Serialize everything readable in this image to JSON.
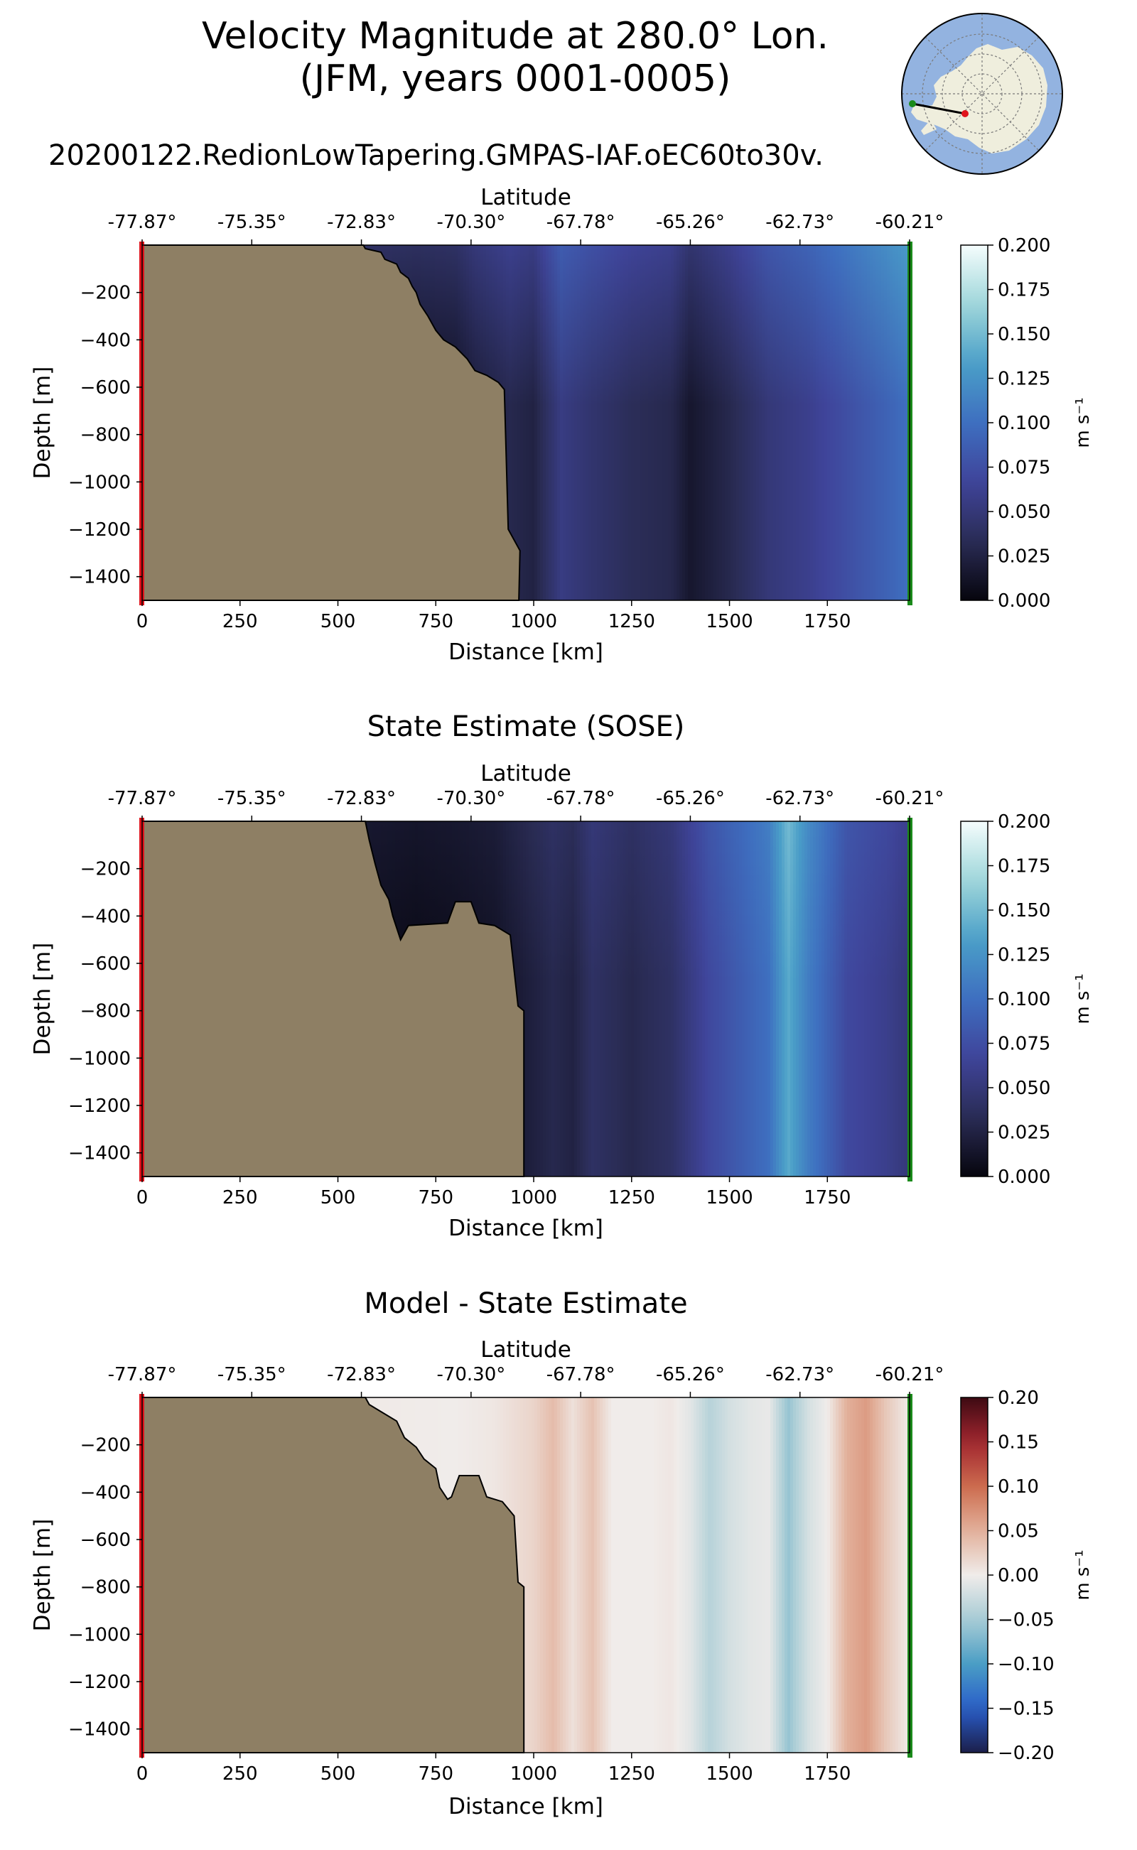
{
  "title": {
    "line1": "Velocity Magnitude at 280.0° Lon.",
    "line2": "(JFM, years 0001-0005)",
    "run": "20200122.RedionLowTapering.GMPAS-IAF.oEC60to30v."
  },
  "colors": {
    "land": "#8e7f64",
    "outline": "#000000",
    "start_marker": "#e0141c",
    "end_marker": "#1a8a1a",
    "inset_ocean": "#93b3e0",
    "inset_land": "#efeedd"
  },
  "inset_map": {
    "name": "antarctic-locator-map",
    "start_point_color": "#e0141c",
    "end_point_color": "#1a8a1a"
  },
  "chart_data": [
    {
      "type": "heatmap",
      "title": "",
      "xlabel": "Distance [km]",
      "ylabel": "Depth [m]",
      "top_axis_label": "Latitude",
      "colorbar_label": "m s⁻¹",
      "colormap": "velocity",
      "xlim": [
        0,
        1960
      ],
      "ylim": [
        -1500,
        0
      ],
      "clim": [
        0.0,
        0.2
      ],
      "x_ticks": [
        0,
        250,
        500,
        750,
        1000,
        1250,
        1500,
        1750
      ],
      "y_ticks": [
        -200,
        -400,
        -600,
        -800,
        -1000,
        -1200,
        -1400
      ],
      "y_tick_labels": [
        "−200",
        "−400",
        "−600",
        "−800",
        "−1000",
        "−1200",
        "−1400"
      ],
      "lat_ticks": [
        0,
        280,
        560,
        840,
        1120,
        1400,
        1680,
        1960
      ],
      "lat_tick_labels": [
        "-77.87°",
        "-75.35°",
        "-72.83°",
        "-70.30°",
        "-67.78°",
        "-65.26°",
        "-62.73°",
        "-60.21°"
      ],
      "cbar_ticks": [
        0.0,
        0.025,
        0.05,
        0.075,
        0.1,
        0.125,
        0.15,
        0.175,
        0.2
      ],
      "cbar_tick_labels": [
        "0.000",
        "0.025",
        "0.050",
        "0.075",
        "0.100",
        "0.125",
        "0.150",
        "0.175",
        "0.200"
      ],
      "seafloor_km_depth": [
        [
          0,
          0
        ],
        [
          565,
          0
        ],
        [
          570,
          -15
        ],
        [
          610,
          -30
        ],
        [
          620,
          -60
        ],
        [
          650,
          -80
        ],
        [
          660,
          -115
        ],
        [
          680,
          -140
        ],
        [
          690,
          -175
        ],
        [
          700,
          -200
        ],
        [
          710,
          -250
        ],
        [
          730,
          -300
        ],
        [
          750,
          -360
        ],
        [
          770,
          -400
        ],
        [
          800,
          -430
        ],
        [
          830,
          -480
        ],
        [
          850,
          -530
        ],
        [
          880,
          -550
        ],
        [
          910,
          -580
        ],
        [
          925,
          -610
        ],
        [
          935,
          -1200
        ],
        [
          965,
          -1290
        ],
        [
          962,
          -1500
        ],
        [
          0,
          -1500
        ]
      ],
      "field_km_value": [
        [
          560,
          0.01
        ],
        [
          700,
          0.008
        ],
        [
          800,
          0.01
        ],
        [
          850,
          0.02
        ],
        [
          940,
          0.03
        ],
        [
          1000,
          0.025
        ],
        [
          1070,
          0.055
        ],
        [
          1150,
          0.045
        ],
        [
          1250,
          0.035
        ],
        [
          1350,
          0.03
        ],
        [
          1400,
          0.015
        ],
        [
          1500,
          0.03
        ],
        [
          1600,
          0.05
        ],
        [
          1700,
          0.06
        ],
        [
          1800,
          0.075
        ],
        [
          1900,
          0.09
        ],
        [
          1960,
          0.1
        ]
      ],
      "surface_enhancement": 0.03
    },
    {
      "type": "heatmap",
      "title": "State Estimate (SOSE)",
      "xlabel": "Distance [km]",
      "ylabel": "Depth [m]",
      "top_axis_label": "Latitude",
      "colorbar_label": "m s⁻¹",
      "colormap": "velocity",
      "xlim": [
        0,
        1960
      ],
      "ylim": [
        -1500,
        0
      ],
      "clim": [
        0.0,
        0.2
      ],
      "x_ticks": [
        0,
        250,
        500,
        750,
        1000,
        1250,
        1500,
        1750
      ],
      "y_ticks": [
        -200,
        -400,
        -600,
        -800,
        -1000,
        -1200,
        -1400
      ],
      "y_tick_labels": [
        "−200",
        "−400",
        "−600",
        "−800",
        "−1000",
        "−1200",
        "−1400"
      ],
      "lat_ticks": [
        0,
        280,
        560,
        840,
        1120,
        1400,
        1680,
        1960
      ],
      "lat_tick_labels": [
        "-77.87°",
        "-75.35°",
        "-72.83°",
        "-70.30°",
        "-67.78°",
        "-65.26°",
        "-62.73°",
        "-60.21°"
      ],
      "cbar_ticks": [
        0.0,
        0.025,
        0.05,
        0.075,
        0.1,
        0.125,
        0.15,
        0.175,
        0.2
      ],
      "cbar_tick_labels": [
        "0.000",
        "0.025",
        "0.050",
        "0.075",
        "0.100",
        "0.125",
        "0.150",
        "0.175",
        "0.200"
      ],
      "seafloor_km_depth": [
        [
          0,
          0
        ],
        [
          570,
          0
        ],
        [
          580,
          -80
        ],
        [
          595,
          -180
        ],
        [
          610,
          -270
        ],
        [
          630,
          -330
        ],
        [
          640,
          -400
        ],
        [
          650,
          -450
        ],
        [
          660,
          -500
        ],
        [
          680,
          -440
        ],
        [
          780,
          -430
        ],
        [
          800,
          -340
        ],
        [
          840,
          -340
        ],
        [
          860,
          -430
        ],
        [
          900,
          -440
        ],
        [
          940,
          -480
        ],
        [
          960,
          -780
        ],
        [
          975,
          -800
        ],
        [
          975,
          -1500
        ],
        [
          0,
          -1500
        ]
      ],
      "field_km_value": [
        [
          580,
          0.006
        ],
        [
          700,
          0.004
        ],
        [
          800,
          0.006
        ],
        [
          900,
          0.01
        ],
        [
          975,
          0.02
        ],
        [
          1050,
          0.03
        ],
        [
          1100,
          0.025
        ],
        [
          1150,
          0.04
        ],
        [
          1250,
          0.03
        ],
        [
          1350,
          0.04
        ],
        [
          1450,
          0.07
        ],
        [
          1550,
          0.09
        ],
        [
          1600,
          0.1
        ],
        [
          1650,
          0.14
        ],
        [
          1700,
          0.11
        ],
        [
          1800,
          0.07
        ],
        [
          1900,
          0.06
        ],
        [
          1960,
          0.05
        ]
      ],
      "surface_enhancement": 0.01
    },
    {
      "type": "heatmap",
      "title": "Model - State Estimate",
      "xlabel": "Distance [km]",
      "ylabel": "Depth [m]",
      "top_axis_label": "Latitude",
      "colorbar_label": "m s⁻¹",
      "colormap": "balance",
      "xlim": [
        0,
        1960
      ],
      "ylim": [
        -1500,
        0
      ],
      "clim": [
        -0.2,
        0.2
      ],
      "x_ticks": [
        0,
        250,
        500,
        750,
        1000,
        1250,
        1500,
        1750
      ],
      "y_ticks": [
        -200,
        -400,
        -600,
        -800,
        -1000,
        -1200,
        -1400
      ],
      "y_tick_labels": [
        "−200",
        "−400",
        "−600",
        "−800",
        "−1000",
        "−1200",
        "−1400"
      ],
      "lat_ticks": [
        0,
        280,
        560,
        840,
        1120,
        1400,
        1680,
        1960
      ],
      "lat_tick_labels": [
        "-77.87°",
        "-75.35°",
        "-72.83°",
        "-70.30°",
        "-67.78°",
        "-65.26°",
        "-62.73°",
        "-60.21°"
      ],
      "cbar_ticks": [
        -0.2,
        -0.15,
        -0.1,
        -0.05,
        0.0,
        0.05,
        0.1,
        0.15,
        0.2
      ],
      "cbar_tick_labels": [
        "−0.20",
        "−0.15",
        "−0.10",
        "−0.05",
        "0.00",
        "0.05",
        "0.10",
        "0.15",
        "0.20"
      ],
      "seafloor_km_depth": [
        [
          0,
          0
        ],
        [
          570,
          0
        ],
        [
          580,
          -30
        ],
        [
          610,
          -60
        ],
        [
          650,
          -100
        ],
        [
          670,
          -170
        ],
        [
          700,
          -210
        ],
        [
          720,
          -260
        ],
        [
          750,
          -300
        ],
        [
          760,
          -380
        ],
        [
          780,
          -430
        ],
        [
          790,
          -420
        ],
        [
          810,
          -330
        ],
        [
          860,
          -330
        ],
        [
          880,
          -420
        ],
        [
          920,
          -440
        ],
        [
          950,
          -500
        ],
        [
          960,
          -780
        ],
        [
          975,
          -800
        ],
        [
          975,
          -1500
        ],
        [
          0,
          -1500
        ]
      ],
      "field_km_value": [
        [
          580,
          0.002
        ],
        [
          800,
          0.0
        ],
        [
          900,
          0.005
        ],
        [
          1000,
          0.02
        ],
        [
          1050,
          0.04
        ],
        [
          1100,
          0.01
        ],
        [
          1150,
          0.035
        ],
        [
          1200,
          0.0
        ],
        [
          1300,
          0.0
        ],
        [
          1350,
          0.005
        ],
        [
          1400,
          -0.01
        ],
        [
          1450,
          -0.04
        ],
        [
          1500,
          -0.02
        ],
        [
          1550,
          -0.01
        ],
        [
          1600,
          -0.005
        ],
        [
          1650,
          -0.06
        ],
        [
          1700,
          -0.02
        ],
        [
          1750,
          0.0
        ],
        [
          1800,
          0.05
        ],
        [
          1850,
          0.065
        ],
        [
          1900,
          0.03
        ],
        [
          1960,
          0.0
        ]
      ],
      "surface_enhancement": 0.0
    }
  ]
}
